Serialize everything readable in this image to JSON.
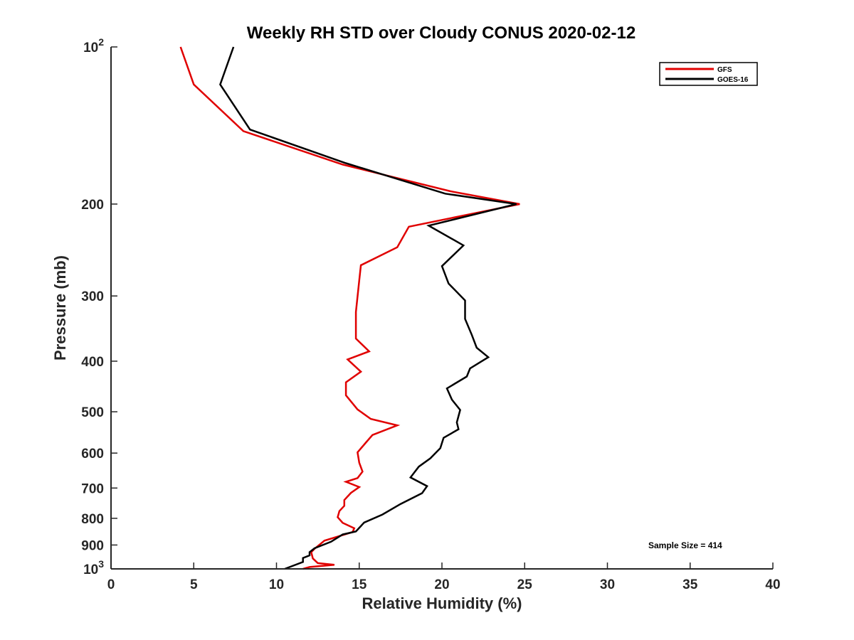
{
  "chart_data": {
    "type": "line",
    "title": "Weekly RH STD over Cloudy CONUS 2020-02-12",
    "xlabel": "Relative Humidity (%)",
    "ylabel": "Pressure (mb)",
    "xlim": [
      0,
      40
    ],
    "ylim": [
      100,
      1000
    ],
    "yscale": "log",
    "y_reversed": true,
    "grid": false,
    "legend_position": "top-right",
    "x_ticks": [
      {
        "value": 0,
        "label": "0"
      },
      {
        "value": 5,
        "label": "5"
      },
      {
        "value": 10,
        "label": "10"
      },
      {
        "value": 15,
        "label": "15"
      },
      {
        "value": 20,
        "label": "20"
      },
      {
        "value": 25,
        "label": "25"
      },
      {
        "value": 30,
        "label": "30"
      },
      {
        "value": 35,
        "label": "35"
      },
      {
        "value": 40,
        "label": "40"
      }
    ],
    "y_ticks": [
      {
        "value": 100,
        "base": "10",
        "exp": "2"
      },
      {
        "value": 200,
        "label": "200"
      },
      {
        "value": 300,
        "label": "300"
      },
      {
        "value": 400,
        "label": "400"
      },
      {
        "value": 500,
        "label": "500"
      },
      {
        "value": 600,
        "label": "600"
      },
      {
        "value": 700,
        "label": "700"
      },
      {
        "value": 800,
        "label": "800"
      },
      {
        "value": 900,
        "label": "900"
      },
      {
        "value": 1000,
        "base": "10",
        "exp": "3"
      }
    ],
    "annotation": "Sample Size = 414",
    "series": [
      {
        "name": "GFS",
        "color": "#e00000",
        "points": [
          [
            4.2,
            100
          ],
          [
            5.0,
            118
          ],
          [
            8.0,
            145
          ],
          [
            14.0,
            168
          ],
          [
            20.5,
            189
          ],
          [
            24.7,
            200
          ],
          [
            18.0,
            221
          ],
          [
            17.3,
            242
          ],
          [
            15.1,
            262
          ],
          [
            15.0,
            280
          ],
          [
            14.8,
            322
          ],
          [
            14.8,
            362
          ],
          [
            15.6,
            383
          ],
          [
            14.3,
            397
          ],
          [
            15.1,
            419
          ],
          [
            14.2,
            439
          ],
          [
            14.2,
            465
          ],
          [
            14.9,
            495
          ],
          [
            15.7,
            516
          ],
          [
            17.3,
            531
          ],
          [
            15.8,
            554
          ],
          [
            15.4,
            573
          ],
          [
            14.9,
            598
          ],
          [
            15.0,
            626
          ],
          [
            15.2,
            651
          ],
          [
            14.9,
            670
          ],
          [
            14.2,
            681
          ],
          [
            15.0,
            697
          ],
          [
            14.5,
            715
          ],
          [
            14.1,
            738
          ],
          [
            14.1,
            757
          ],
          [
            13.8,
            775
          ],
          [
            13.7,
            796
          ],
          [
            14.0,
            816
          ],
          [
            14.7,
            836
          ],
          [
            14.6,
            850
          ],
          [
            12.9,
            883
          ],
          [
            12.3,
            915
          ],
          [
            12.1,
            929
          ],
          [
            12.2,
            955
          ],
          [
            12.5,
            975
          ],
          [
            13.5,
            982
          ],
          [
            12.0,
            992
          ],
          [
            11.6,
            1000
          ]
        ]
      },
      {
        "name": "GOES-16",
        "color": "#000000",
        "points": [
          [
            7.4,
            100
          ],
          [
            6.6,
            118
          ],
          [
            8.4,
            144
          ],
          [
            14.2,
            167
          ],
          [
            20.2,
            191
          ],
          [
            24.5,
            200
          ],
          [
            19.2,
            220
          ],
          [
            21.3,
            240
          ],
          [
            20.0,
            263
          ],
          [
            20.4,
            284
          ],
          [
            21.4,
            306
          ],
          [
            21.4,
            332
          ],
          [
            21.8,
            356
          ],
          [
            22.1,
            377
          ],
          [
            22.8,
            393
          ],
          [
            21.7,
            413
          ],
          [
            21.5,
            428
          ],
          [
            20.3,
            451
          ],
          [
            20.6,
            474
          ],
          [
            21.1,
            496
          ],
          [
            20.9,
            524
          ],
          [
            21.0,
            540
          ],
          [
            20.1,
            561
          ],
          [
            19.9,
            587
          ],
          [
            19.3,
            614
          ],
          [
            18.6,
            637
          ],
          [
            18.1,
            668
          ],
          [
            19.1,
            694
          ],
          [
            18.8,
            716
          ],
          [
            17.5,
            751
          ],
          [
            16.4,
            787
          ],
          [
            15.3,
            815
          ],
          [
            14.8,
            848
          ],
          [
            14.0,
            859
          ],
          [
            13.3,
            887
          ],
          [
            12.3,
            913
          ],
          [
            12.0,
            929
          ],
          [
            12.0,
            942
          ],
          [
            11.6,
            953
          ],
          [
            11.6,
            970
          ],
          [
            10.5,
            1000
          ]
        ]
      }
    ]
  }
}
